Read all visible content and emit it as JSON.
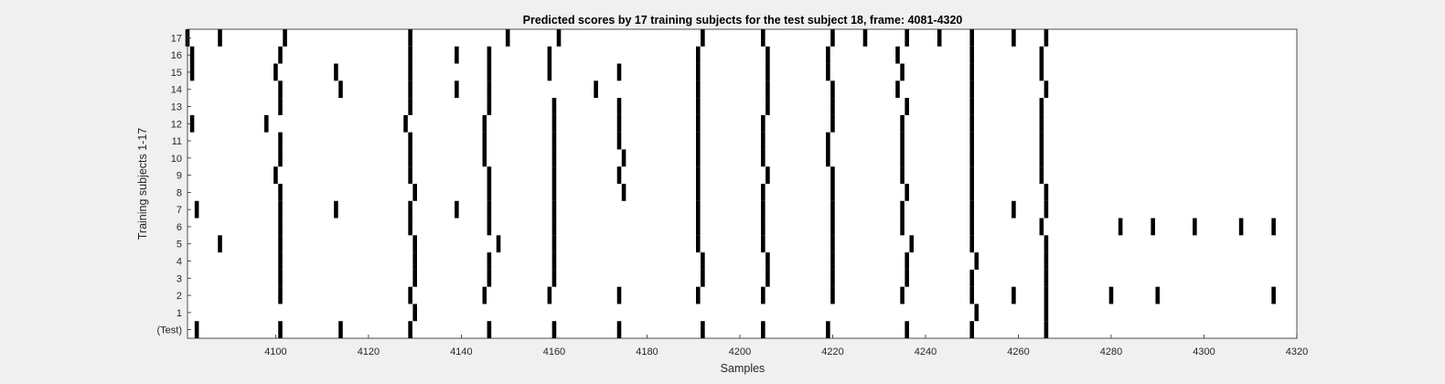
{
  "chart_data": {
    "type": "event-raster",
    "title": "Predicted scores by 17 training subjects for the test subject 18, frame: 4081-4320",
    "xlabel": "Samples",
    "ylabel": "Training subjects 1-17",
    "xlim": [
      4081,
      4320
    ],
    "xticks": [
      4100,
      4120,
      4140,
      4160,
      4180,
      4200,
      4220,
      4240,
      4260,
      4280,
      4300,
      4320
    ],
    "rows": [
      "(Test)",
      "1",
      "2",
      "3",
      "4",
      "5",
      "6",
      "7",
      "8",
      "9",
      "10",
      "11",
      "12",
      "13",
      "14",
      "15",
      "16",
      "17"
    ],
    "grid": false,
    "colors": {
      "background": "#f0f0f0",
      "plot_area": "#ffffff",
      "marks": "#000000"
    },
    "events": [
      {
        "row": "(Test)",
        "x": [
          4083,
          4101,
          4114,
          4129,
          4146,
          4160,
          4174,
          4192,
          4205,
          4219,
          4236,
          4250,
          4266
        ]
      },
      {
        "row": "1",
        "x": [
          4130,
          4251,
          4266
        ]
      },
      {
        "row": "2",
        "x": [
          4101,
          4129,
          4145,
          4159,
          4174,
          4191,
          4205,
          4220,
          4235,
          4250,
          4259,
          4266,
          4280,
          4290,
          4315
        ]
      },
      {
        "row": "3",
        "x": [
          4101,
          4130,
          4146,
          4160,
          4192,
          4206,
          4220,
          4236,
          4250,
          4266
        ]
      },
      {
        "row": "4",
        "x": [
          4101,
          4130,
          4146,
          4160,
          4192,
          4206,
          4220,
          4236,
          4251,
          4266
        ]
      },
      {
        "row": "5",
        "x": [
          4088,
          4101,
          4130,
          4148,
          4160,
          4191,
          4205,
          4220,
          4237,
          4250,
          4266
        ]
      },
      {
        "row": "6",
        "x": [
          4101,
          4129,
          4146,
          4160,
          4191,
          4205,
          4220,
          4235,
          4250,
          4265,
          4282,
          4289,
          4298,
          4308,
          4315
        ]
      },
      {
        "row": "7",
        "x": [
          4083,
          4101,
          4113,
          4129,
          4139,
          4146,
          4160,
          4191,
          4205,
          4220,
          4235,
          4250,
          4259,
          4266
        ]
      },
      {
        "row": "8",
        "x": [
          4101,
          4130,
          4146,
          4160,
          4175,
          4191,
          4205,
          4220,
          4236,
          4250,
          4266
        ]
      },
      {
        "row": "9",
        "x": [
          4100,
          4129,
          4146,
          4160,
          4174,
          4191,
          4206,
          4220,
          4235,
          4250,
          4265
        ]
      },
      {
        "row": "10",
        "x": [
          4101,
          4129,
          4145,
          4160,
          4175,
          4191,
          4205,
          4219,
          4235,
          4250,
          4265
        ]
      },
      {
        "row": "11",
        "x": [
          4101,
          4129,
          4145,
          4160,
          4174,
          4191,
          4205,
          4219,
          4235,
          4250,
          4265
        ]
      },
      {
        "row": "12",
        "x": [
          4082,
          4098,
          4128,
          4145,
          4160,
          4174,
          4191,
          4205,
          4220,
          4235,
          4250,
          4265
        ]
      },
      {
        "row": "13",
        "x": [
          4101,
          4129,
          4146,
          4160,
          4174,
          4191,
          4206,
          4220,
          4236,
          4250,
          4265
        ]
      },
      {
        "row": "14",
        "x": [
          4101,
          4114,
          4129,
          4139,
          4146,
          4169,
          4191,
          4206,
          4220,
          4234,
          4250,
          4266
        ]
      },
      {
        "row": "15",
        "x": [
          4082,
          4100,
          4113,
          4129,
          4146,
          4159,
          4174,
          4191,
          4206,
          4219,
          4235,
          4250,
          4265
        ]
      },
      {
        "row": "16",
        "x": [
          4082,
          4101,
          4129,
          4139,
          4146,
          4159,
          4191,
          4206,
          4219,
          4234,
          4250,
          4265
        ]
      },
      {
        "row": "17",
        "x": [
          4081,
          4088,
          4102,
          4129,
          4150,
          4161,
          4192,
          4205,
          4220,
          4227,
          4236,
          4243,
          4250,
          4259,
          4266
        ]
      }
    ]
  }
}
